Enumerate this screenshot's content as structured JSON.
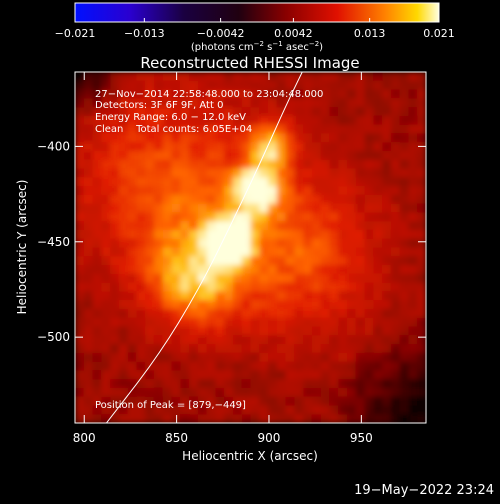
{
  "chart_data": {
    "type": "heatmap",
    "title": "Reconstructed RHESSI Image",
    "xlabel": "Heliocentric X (arcsec)",
    "ylabel": "Heliocentric Y (arcsec)",
    "xlim": [
      795,
      985
    ],
    "ylim": [
      -545,
      -361
    ],
    "x_ticks": [
      "800",
      "850",
      "900",
      "950"
    ],
    "x_tick_values": [
      800,
      850,
      900,
      950
    ],
    "y_ticks": [
      "−400",
      "−450",
      "−500"
    ],
    "y_tick_values": [
      -400,
      -450,
      -500
    ],
    "colorbar": {
      "ticks": [
        "−0.021",
        "−0.013",
        "−0.0042",
        "0.0042",
        "0.013",
        "0.021"
      ],
      "tick_values": [
        -0.021,
        -0.013,
        -0.0042,
        0.0042,
        0.013,
        0.021
      ],
      "range": [
        -0.021,
        0.021
      ],
      "unit_base": "(photons cm",
      "unit_exp1": "−2",
      "unit_mid": " s",
      "unit_exp2": "−1",
      "unit_mid2": " asec",
      "unit_exp3": "−2",
      "unit_end": ")"
    },
    "annotations": {
      "line1": "27−Nov−2014 22:58:48.000 to 23:04:48.000",
      "line2": "Detectors: 3F 6F 9F, Att 0",
      "line3": "Energy Range: 6.0 − 12.0 keV",
      "line4": "Clean    Total counts: 6.05E+04",
      "peak": "Position of Peak = [879,−449]"
    },
    "peak": {
      "x": 879,
      "y": -449
    },
    "limb_curve": [
      [
        812,
        -545
      ],
      [
        840,
        -510
      ],
      [
        862,
        -475
      ],
      [
        880,
        -440
      ],
      [
        897,
        -405
      ],
      [
        909,
        -379
      ],
      [
        918,
        -361
      ]
    ],
    "sources": [
      {
        "x": 879,
        "y": -449,
        "sigma": 7,
        "amp": 1.0
      },
      {
        "x": 893,
        "y": -423,
        "sigma": 9,
        "amp": 0.55
      },
      {
        "x": 902,
        "y": -400,
        "sigma": 9,
        "amp": 0.45
      },
      {
        "x": 860,
        "y": -470,
        "sigma": 18,
        "amp": 0.45
      },
      {
        "x": 915,
        "y": -455,
        "sigma": 30,
        "amp": 0.35
      },
      {
        "x": 845,
        "y": -420,
        "sigma": 35,
        "amp": 0.35
      }
    ],
    "timestamp": "19−May−2022 23:24"
  },
  "colors": {
    "background": "#000000",
    "text": "#ffffff",
    "limb": "#ffffff"
  }
}
